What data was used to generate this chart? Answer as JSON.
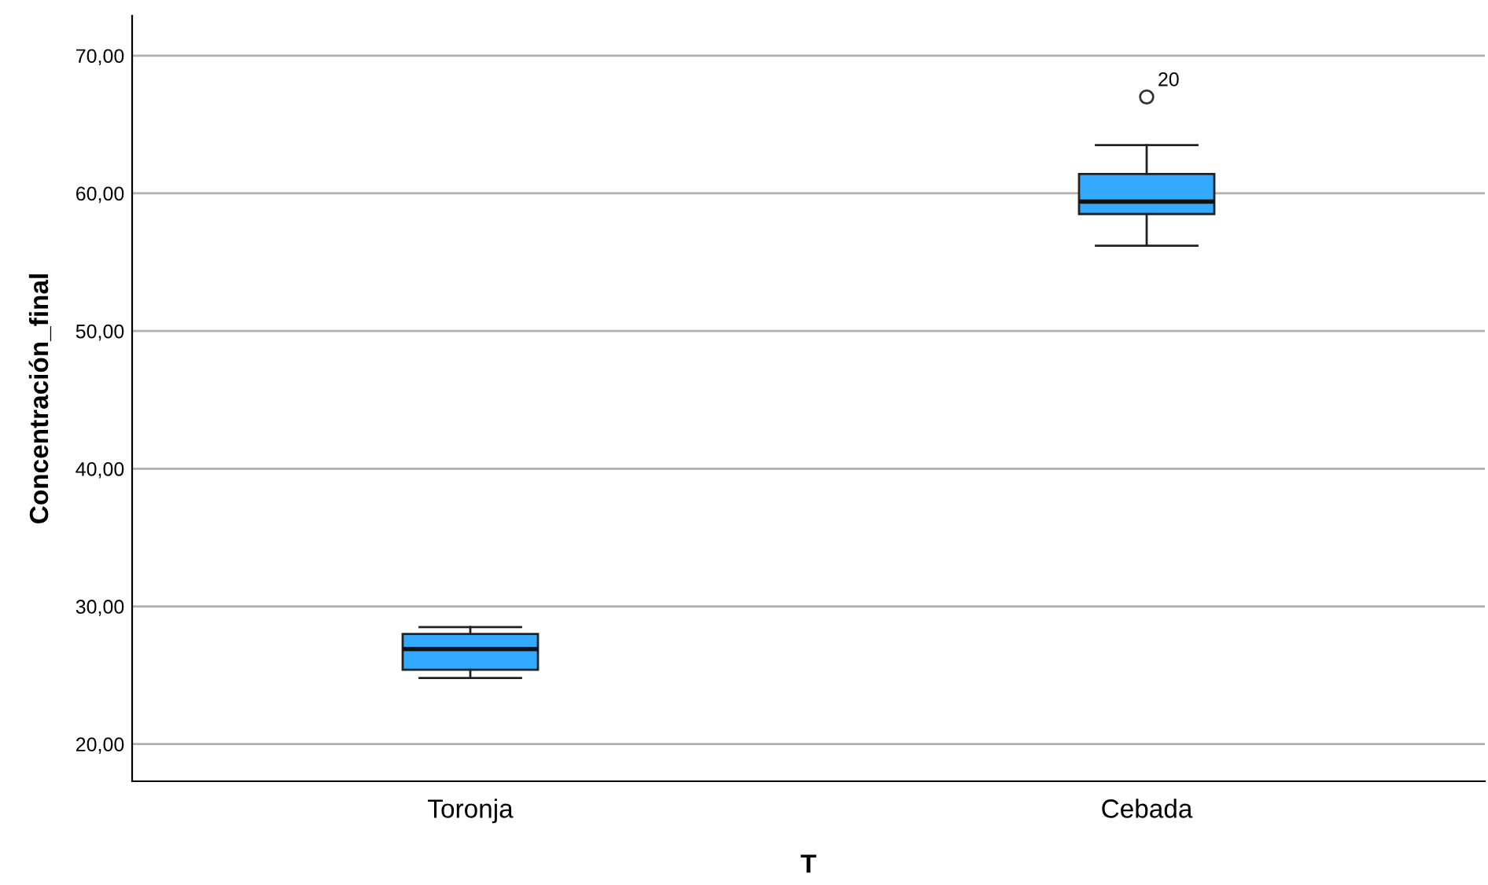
{
  "chart_data": {
    "type": "box",
    "xlabel": "T",
    "ylabel": "Concentración_final",
    "categories": [
      "Toronja",
      "Cebada"
    ],
    "color": "#33aaff",
    "boxes": [
      {
        "low": 24.8,
        "q1": 25.4,
        "median": 26.9,
        "q3": 28.0,
        "high": 28.5
      },
      {
        "low": 56.2,
        "q1": 58.5,
        "median": 59.4,
        "q3": 61.4,
        "high": 63.5,
        "outliers": [
          67.0
        ]
      }
    ],
    "annotations": [
      "20"
    ],
    "ylim": [
      17.3,
      72.9
    ],
    "yticks": [
      {
        "value": 20,
        "label": "20,00"
      },
      {
        "value": 30,
        "label": "30,00"
      },
      {
        "value": 40,
        "label": "40,00"
      },
      {
        "value": 50,
        "label": "50,00"
      },
      {
        "value": 60,
        "label": "60,00"
      },
      {
        "value": 70,
        "label": "70,00"
      }
    ],
    "grid": "y"
  }
}
